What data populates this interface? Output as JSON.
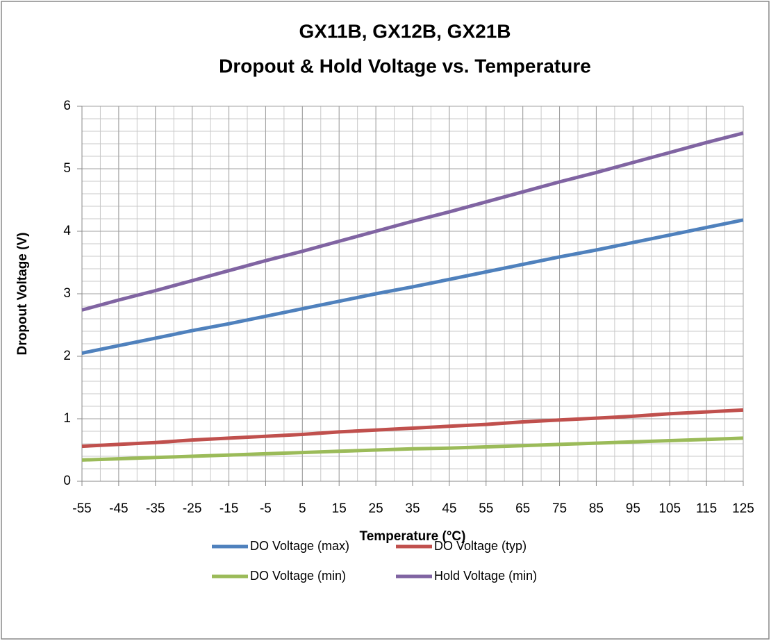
{
  "chart_data": {
    "type": "line",
    "title": [
      "GX11B, GX12B, GX21B",
      "Dropout & Hold Voltage vs. Temperature"
    ],
    "x_label": "Temperature (°C)",
    "y_label": "Dropout Voltage (V)",
    "x": [
      -55,
      -45,
      -35,
      -25,
      -15,
      -5,
      5,
      15,
      25,
      35,
      45,
      55,
      65,
      75,
      85,
      95,
      105,
      115,
      125
    ],
    "series": [
      {
        "name": "DO Voltage (max)",
        "color": "#4f81bd",
        "values": [
          2.05,
          2.17,
          2.29,
          2.41,
          2.52,
          2.64,
          2.76,
          2.88,
          3.0,
          3.11,
          3.23,
          3.35,
          3.47,
          3.59,
          3.7,
          3.82,
          3.94,
          4.06,
          4.18
        ]
      },
      {
        "name": "DO Voltage (typ)",
        "color": "#c0504d",
        "values": [
          0.56,
          0.59,
          0.62,
          0.66,
          0.69,
          0.72,
          0.75,
          0.79,
          0.82,
          0.85,
          0.88,
          0.91,
          0.95,
          0.98,
          1.01,
          1.04,
          1.08,
          1.11,
          1.14
        ]
      },
      {
        "name": "DO Voltage (min)",
        "color": "#9bbb59",
        "values": [
          0.34,
          0.36,
          0.38,
          0.4,
          0.42,
          0.44,
          0.46,
          0.48,
          0.5,
          0.52,
          0.53,
          0.55,
          0.57,
          0.59,
          0.61,
          0.63,
          0.65,
          0.67,
          0.69
        ]
      },
      {
        "name": "Hold Voltage (min)",
        "color": "#8064a2",
        "values": [
          2.74,
          2.9,
          3.05,
          3.21,
          3.37,
          3.53,
          3.68,
          3.84,
          4.0,
          4.16,
          4.31,
          4.47,
          4.63,
          4.79,
          4.94,
          5.1,
          5.26,
          5.42,
          5.57
        ]
      }
    ],
    "xlim": [
      -55,
      125
    ],
    "xticks": [
      -55,
      -45,
      -35,
      -25,
      -15,
      -5,
      5,
      15,
      25,
      35,
      45,
      55,
      65,
      75,
      85,
      95,
      105,
      115,
      125
    ],
    "ylim": [
      0,
      6
    ],
    "yticks": [
      0,
      1,
      2,
      3,
      4,
      5,
      6
    ],
    "grid": true,
    "minor_grid": {
      "x": 5,
      "y": 0.2
    },
    "legend": "bottom"
  }
}
